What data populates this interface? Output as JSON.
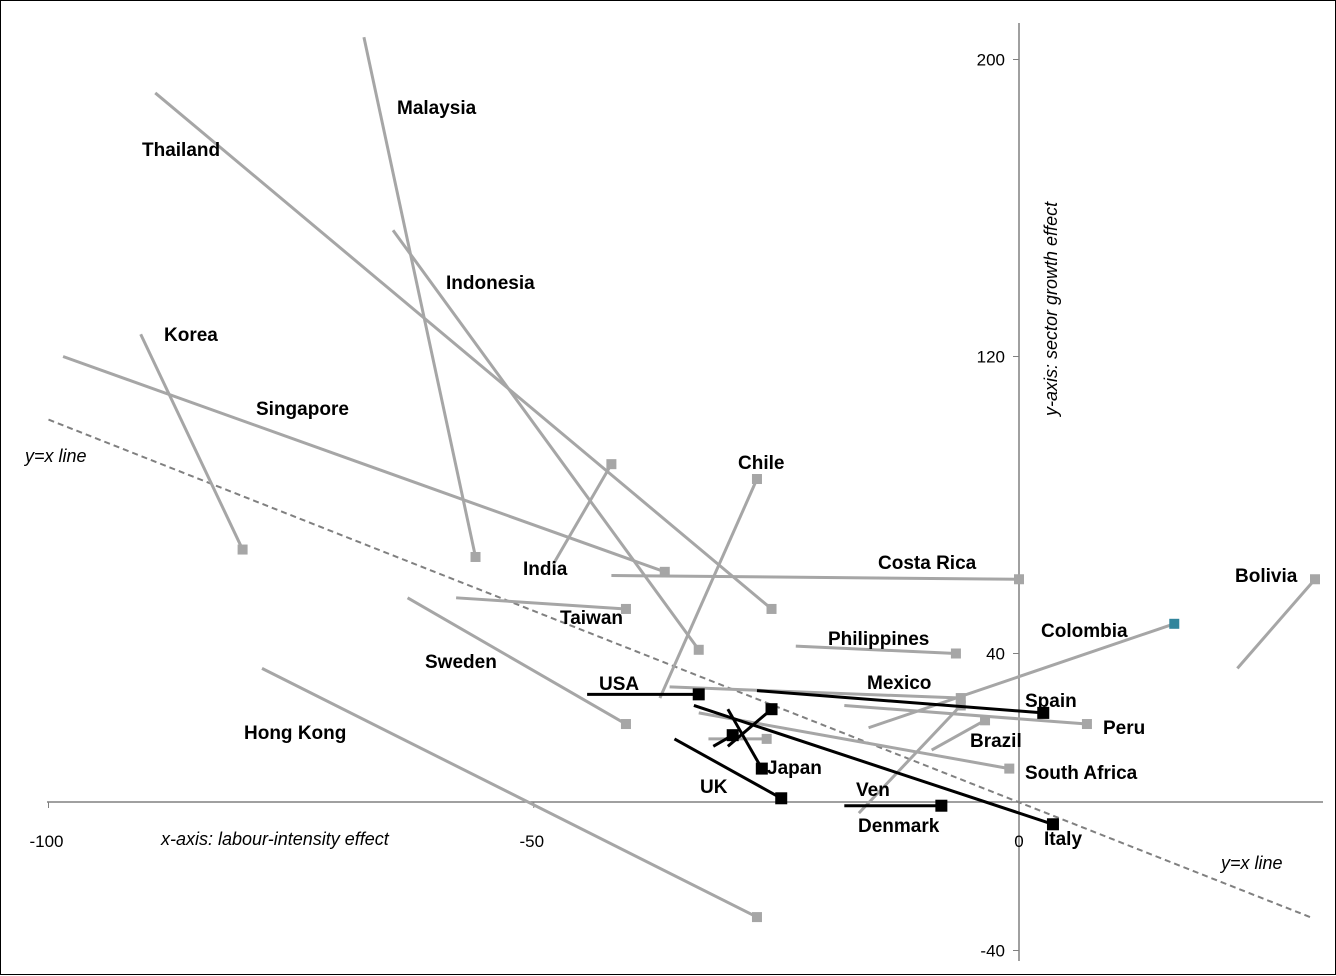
{
  "chart_data": {
    "type": "scatter",
    "xlabel": "x-axis: labour-intensity effect",
    "ylabel": "y-axis: sector growth effect",
    "xlim": [
      -100,
      33
    ],
    "ylim": [
      -47,
      210
    ],
    "x_ticks": [
      "-100",
      "-50",
      "0"
    ],
    "y_ticks": [
      "200",
      "120",
      "40",
      "-40"
    ],
    "x_tick_values": [
      -100,
      -50,
      0
    ],
    "y_tick_values": [
      200,
      120,
      40,
      -40
    ],
    "reference_line_label": "y=x line",
    "colors": {
      "developing": "#a6a6a6",
      "developed": "#000000",
      "highlight": "#31859c",
      "reference": "#808080"
    },
    "series": [
      {
        "name": "Malaysia",
        "group": "developing",
        "points": [
          [
            -67.5,
            206
          ],
          [
            -56,
            66
          ]
        ]
      },
      {
        "name": "Thailand",
        "group": "developing",
        "points": [
          [
            -89,
            191
          ],
          [
            -25.5,
            52
          ]
        ]
      },
      {
        "name": "Indonesia",
        "group": "developing",
        "points": [
          [
            -64.5,
            154
          ],
          [
            -33,
            41
          ]
        ]
      },
      {
        "name": "Korea",
        "group": "developing",
        "points": [
          [
            -90.5,
            126
          ],
          [
            -80,
            68
          ]
        ]
      },
      {
        "name": "Singapore",
        "group": "developing",
        "points": [
          [
            -98.5,
            120
          ],
          [
            -36.5,
            62
          ]
        ]
      },
      {
        "name": "India",
        "group": "developing",
        "points": [
          [
            -48,
            64
          ],
          [
            -42,
            91
          ]
        ]
      },
      {
        "name": "Chile",
        "group": "developing",
        "points": [
          [
            -37,
            28
          ],
          [
            -27,
            87
          ]
        ]
      },
      {
        "name": "Costa Rica",
        "group": "developing",
        "points": [
          [
            -42,
            61
          ],
          [
            0,
            60
          ]
        ]
      },
      {
        "name": "Taiwan",
        "group": "developing",
        "points": [
          [
            -58,
            55
          ],
          [
            -40.5,
            52
          ]
        ]
      },
      {
        "name": "Philippines",
        "group": "developing",
        "points": [
          [
            -23,
            42
          ],
          [
            -6.5,
            40
          ]
        ]
      },
      {
        "name": "Colombia",
        "group": "developing",
        "points": [
          [
            -15.5,
            20
          ],
          [
            16,
            48
          ]
        ]
      },
      {
        "name": "Bolivia",
        "group": "developing",
        "points": [
          [
            22.5,
            36
          ],
          [
            30.5,
            60
          ]
        ]
      },
      {
        "name": "Mexico",
        "group": "developing",
        "points": [
          [
            -36,
            31
          ],
          [
            -6,
            28
          ]
        ]
      },
      {
        "name": "Peru",
        "group": "developing",
        "points": [
          [
            -18,
            26
          ],
          [
            7,
            21
          ]
        ]
      },
      {
        "name": "Brazil",
        "group": "developing",
        "points": [
          [
            -9,
            14
          ],
          [
            -3.5,
            22
          ]
        ]
      },
      {
        "name": "South Africa",
        "group": "developing",
        "points": [
          [
            -33,
            24
          ],
          [
            -1,
            9
          ]
        ]
      },
      {
        "name": "Ven",
        "group": "developing",
        "points": [
          [
            -16.5,
            -3
          ],
          [
            -6,
            26
          ]
        ]
      },
      {
        "name": "Hong Kong",
        "group": "developing",
        "points": [
          [
            -78,
            36
          ],
          [
            -27,
            -31
          ]
        ]
      },
      {
        "name": "Japan",
        "group": "developing",
        "points": [
          [
            -32,
            17
          ],
          [
            -26,
            17
          ]
        ]
      },
      {
        "name": "Sweden",
        "group": "developing",
        "points": [
          [
            -63,
            55
          ],
          [
            -40.5,
            21
          ]
        ]
      },
      {
        "name": "USA",
        "group": "developed",
        "points": [
          [
            -44.5,
            29
          ],
          [
            -33,
            29
          ]
        ]
      },
      {
        "name": "UK",
        "group": "developed",
        "points": [
          [
            -35.5,
            17
          ],
          [
            -24.5,
            1
          ]
        ]
      },
      {
        "name": "Japan",
        "group": "developed",
        "points": [
          [
            -30,
            25
          ],
          [
            -26.5,
            9
          ]
        ]
      },
      {
        "name": "Japan",
        "group": "developed",
        "points": [
          [
            -31.5,
            15
          ],
          [
            -29.5,
            18
          ]
        ]
      },
      {
        "name": "Japan",
        "group": "developed",
        "points": [
          [
            -30,
            15
          ],
          [
            -25.5,
            25
          ]
        ]
      },
      {
        "name": "Italy",
        "group": "developed",
        "points": [
          [
            -33.5,
            26
          ],
          [
            3.5,
            -6
          ]
        ]
      },
      {
        "name": "Spain",
        "group": "developed",
        "points": [
          [
            -27,
            30
          ],
          [
            2.5,
            24
          ]
        ]
      },
      {
        "name": "Denmark",
        "group": "developed",
        "points": [
          [
            -18,
            -1
          ],
          [
            -8,
            -1
          ]
        ]
      }
    ],
    "country_labels": [
      "Malaysia",
      "Thailand",
      "Indonesia",
      "Korea",
      "Singapore",
      "Chile",
      "India",
      "Costa Rica",
      "Bolivia",
      "Taiwan",
      "Philippines",
      "Colombia",
      "Sweden",
      "Mexico",
      "USA",
      "Spain",
      "Hong Kong",
      "Peru",
      "Brazil",
      "Japan",
      "South Africa",
      "UK",
      "Ven",
      "Denmark",
      "Italy"
    ]
  }
}
